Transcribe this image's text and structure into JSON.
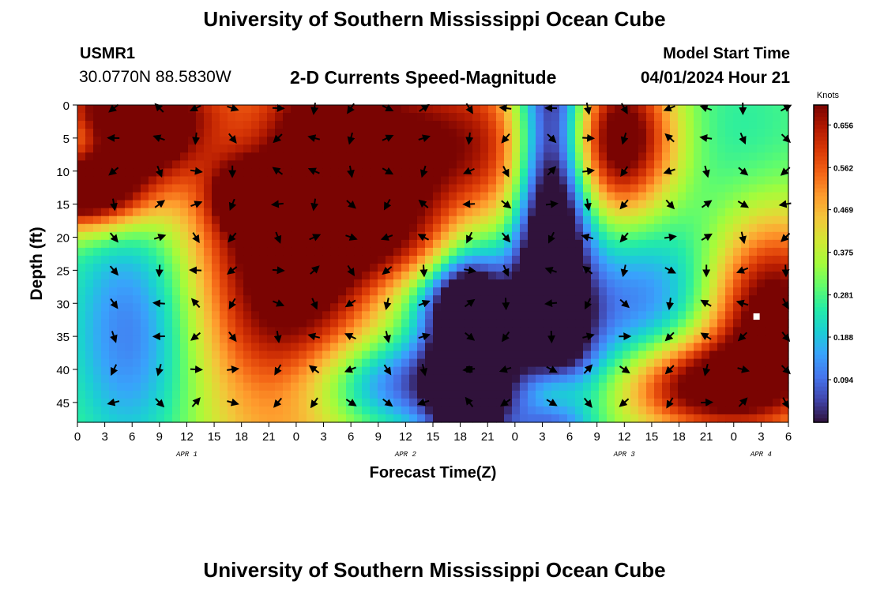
{
  "page": {
    "title": "University of Southern Mississippi Ocean Cube",
    "footer_title": "University of Southern Mississippi Ocean Cube",
    "station_id": "USMR1",
    "station_coords": "30.0770N  88.5830W",
    "subtitle": "2-D Currents Speed-Magnitude",
    "model_start_label": "Model Start Time",
    "model_start_value": "04/01/2024 Hour 21"
  },
  "chart_data": {
    "type": "heatmap",
    "title": "2-D Currents Speed-Magnitude",
    "xlabel": "Forecast Time(Z)",
    "ylabel": "Depth (ft)",
    "x_range_hours": [
      0,
      78
    ],
    "y_range_ft": [
      0,
      48
    ],
    "x_ticks": [
      "0",
      "3",
      "6",
      "9",
      "12",
      "15",
      "18",
      "21",
      "0",
      "3",
      "6",
      "9",
      "12",
      "15",
      "18",
      "21",
      "0",
      "3",
      "6",
      "9",
      "12",
      "15",
      "18",
      "21",
      "0",
      "3",
      "6"
    ],
    "y_ticks": [
      0,
      5,
      10,
      15,
      20,
      25,
      30,
      35,
      40,
      45
    ],
    "day_labels": [
      {
        "label": "APR 1",
        "hour": 12
      },
      {
        "label": "APR 2",
        "hour": 36
      },
      {
        "label": "APR 3",
        "hour": 60
      },
      {
        "label": "APR 4",
        "hour": 75
      }
    ],
    "colorbar": {
      "title": "Knots",
      "range": [
        0,
        0.7
      ],
      "ticks": [
        0.656,
        0.562,
        0.469,
        0.375,
        0.281,
        0.188,
        0.094
      ],
      "colormap": [
        "#30123b",
        "#4145ab",
        "#4675ed",
        "#39a2fc",
        "#1bcfd4",
        "#24eca6",
        "#61fc6c",
        "#a4fc3b",
        "#d1e834",
        "#f3c63a",
        "#fe9b2d",
        "#f36315",
        "#d93806",
        "#b11901",
        "#7a0402"
      ]
    },
    "arrow_columns_hours": [
      4,
      9,
      13,
      17,
      22,
      26,
      30,
      34,
      38,
      43,
      47,
      52,
      56,
      60,
      65,
      69,
      73,
      78
    ],
    "arrow_rows_ft": [
      0,
      5,
      10,
      15,
      20,
      25,
      30,
      35,
      40,
      45
    ],
    "speed_blobs": [
      {
        "hour": 1,
        "depth": 13,
        "hw": 5,
        "hd": 4,
        "value": 0.68
      },
      {
        "hour": 7,
        "depth": 5,
        "hw": 4,
        "hd": 4,
        "value": 0.56
      },
      {
        "hour": 5,
        "depth": 0,
        "hw": 6,
        "hd": 3,
        "value": 0.45
      },
      {
        "hour": 6,
        "depth": 34,
        "hw": 5,
        "hd": 14,
        "value": -0.22
      },
      {
        "hour": 21,
        "depth": 4,
        "hw": 4,
        "hd": 6,
        "value": -0.18
      },
      {
        "hour": 26,
        "depth": 3,
        "hw": 4,
        "hd": 5,
        "value": 0.2
      },
      {
        "hour": 23,
        "depth": 23,
        "hw": 7,
        "hd": 20,
        "value": 0.58
      },
      {
        "hour": 18,
        "depth": 14,
        "hw": 2,
        "hd": 3,
        "value": 0.4
      },
      {
        "hour": 38,
        "depth": 7,
        "hw": 15,
        "hd": 10,
        "value": 0.52
      },
      {
        "hour": 35,
        "depth": 22,
        "hw": 6,
        "hd": 6,
        "value": 0.28
      },
      {
        "hour": 40,
        "depth": 29,
        "hw": 5,
        "hd": 4,
        "value": -0.18
      },
      {
        "hour": 35,
        "depth": 42,
        "hw": 8,
        "hd": 5,
        "value": -0.28
      },
      {
        "hour": 52,
        "depth": 16,
        "hw": 3,
        "hd": 28,
        "value": -0.6
      },
      {
        "hour": 43,
        "depth": 38,
        "hw": 3,
        "hd": 12,
        "value": -0.55
      },
      {
        "hour": 52,
        "depth": 43,
        "hw": 2.5,
        "hd": 3.5,
        "value": 0.42
      },
      {
        "hour": 60,
        "depth": 5,
        "hw": 4,
        "hd": 8,
        "value": 0.5
      },
      {
        "hour": 54,
        "depth": 24,
        "hw": 3,
        "hd": 5,
        "value": 0.18
      },
      {
        "hour": 61,
        "depth": 30,
        "hw": 8,
        "hd": 10,
        "value": -0.22
      },
      {
        "hour": 70,
        "depth": 5,
        "hw": 8,
        "hd": 10,
        "value": 0.02
      },
      {
        "hour": 76,
        "depth": 32,
        "hw": 5,
        "hd": 10,
        "value": 0.6
      },
      {
        "hour": 68,
        "depth": 42,
        "hw": 6,
        "hd": 5,
        "value": 0.5
      },
      {
        "hour": 71,
        "depth": 44,
        "hw": 8,
        "hd": 4,
        "value": 0.2
      }
    ],
    "speed_base": 0.32,
    "markers": [
      {
        "hour": 43,
        "depth": 40,
        "color": "#000000"
      },
      {
        "hour": 74.5,
        "depth": 32,
        "color": "#ffffff"
      }
    ]
  }
}
